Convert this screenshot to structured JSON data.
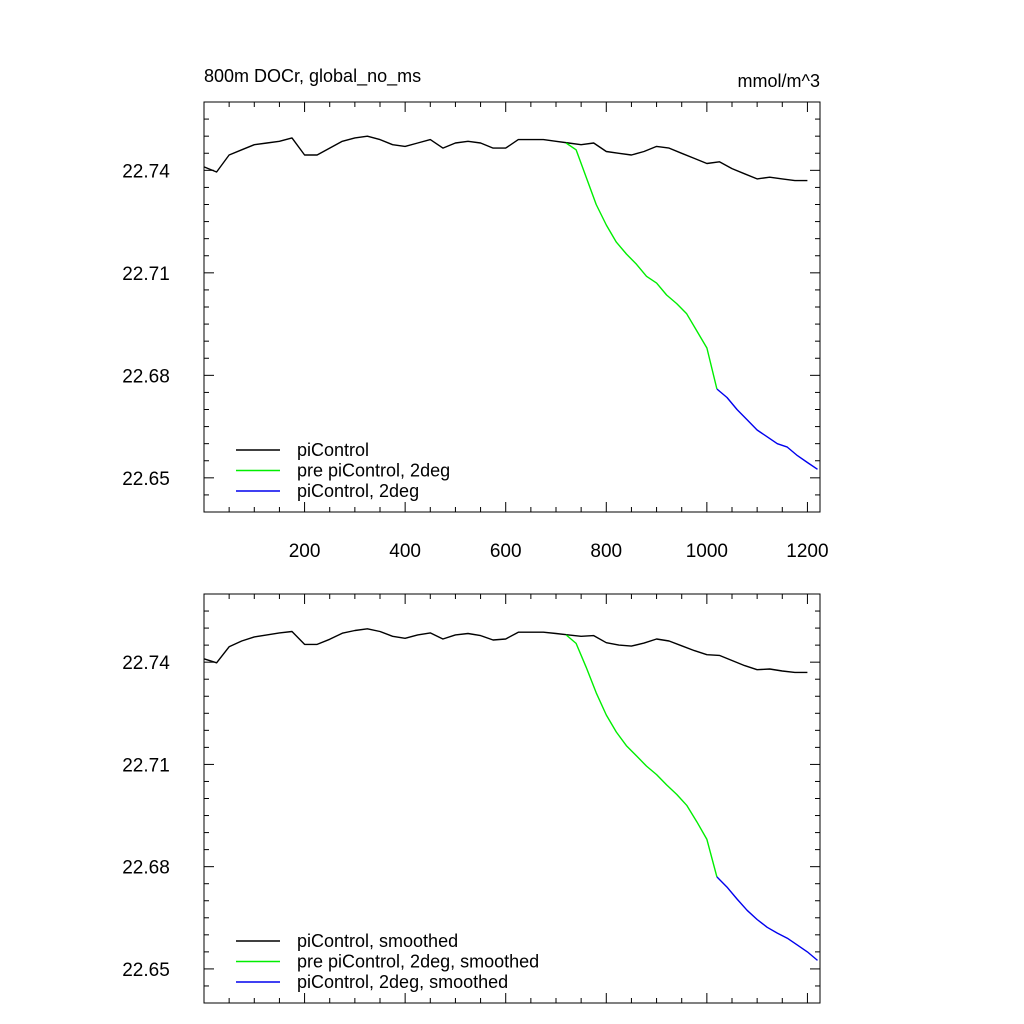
{
  "chart_data": [
    {
      "type": "line",
      "title_left": "800m DOCr, global_no_ms",
      "title_right": "mmol/m^3",
      "xlim": [
        0,
        1225
      ],
      "ylim": [
        22.64,
        22.76
      ],
      "xticks": [
        200,
        400,
        600,
        800,
        1000,
        1200
      ],
      "xtick_labels": [
        "200",
        "400",
        "600",
        "800",
        "1000",
        "1200"
      ],
      "show_xtick_labels": true,
      "yticks": [
        22.65,
        22.68,
        22.71,
        22.74
      ],
      "ytick_labels": [
        "22.65",
        "22.68",
        "22.71",
        "22.74"
      ],
      "legend_position": "bottom-left",
      "series": [
        {
          "name": "piControl",
          "color": "#000000",
          "x": [
            0,
            25,
            50,
            75,
            100,
            125,
            150,
            175,
            200,
            225,
            250,
            275,
            300,
            325,
            350,
            375,
            400,
            425,
            450,
            475,
            500,
            525,
            550,
            575,
            600,
            625,
            650,
            675,
            700,
            725,
            750,
            775,
            800,
            825,
            850,
            875,
            900,
            925,
            950,
            975,
            1000,
            1025,
            1050,
            1075,
            1100,
            1125,
            1150,
            1175,
            1200
          ],
          "y": [
            22.741,
            22.7395,
            22.7445,
            22.746,
            22.7475,
            22.748,
            22.7485,
            22.7495,
            22.7445,
            22.7445,
            22.7465,
            22.7485,
            22.7495,
            22.75,
            22.749,
            22.7475,
            22.747,
            22.748,
            22.749,
            22.7465,
            22.748,
            22.7485,
            22.748,
            22.7465,
            22.7465,
            22.749,
            22.749,
            22.749,
            22.7485,
            22.748,
            22.7475,
            22.748,
            22.7455,
            22.745,
            22.7445,
            22.7455,
            22.747,
            22.7465,
            22.745,
            22.7435,
            22.742,
            22.7425,
            22.7405,
            22.739,
            22.7375,
            22.738,
            22.7375,
            22.737,
            22.737
          ]
        },
        {
          "name": "pre piControl, 2deg",
          "color": "#00ee00",
          "x": [
            720,
            740,
            760,
            780,
            800,
            820,
            840,
            860,
            880,
            900,
            920,
            940,
            960,
            980,
            1000,
            1020
          ],
          "y": [
            22.748,
            22.746,
            22.738,
            22.73,
            22.724,
            22.719,
            22.7155,
            22.7125,
            22.709,
            22.707,
            22.7035,
            22.701,
            22.698,
            22.693,
            22.688,
            22.676
          ]
        },
        {
          "name": "piControl, 2deg",
          "color": "#0000ee",
          "x": [
            1020,
            1040,
            1060,
            1080,
            1100,
            1120,
            1140,
            1160,
            1180,
            1200,
            1220
          ],
          "y": [
            22.676,
            22.6735,
            22.67,
            22.667,
            22.664,
            22.662,
            22.66,
            22.659,
            22.6565,
            22.6545,
            22.6525
          ]
        }
      ]
    },
    {
      "type": "line",
      "title_left": "",
      "title_right": "",
      "xlim": [
        0,
        1225
      ],
      "ylim": [
        22.64,
        22.76
      ],
      "xticks": [
        200,
        400,
        600,
        800,
        1000,
        1200
      ],
      "xtick_labels": [],
      "show_xtick_labels": false,
      "yticks": [
        22.65,
        22.68,
        22.71,
        22.74
      ],
      "ytick_labels": [
        "22.65",
        "22.68",
        "22.71",
        "22.74"
      ],
      "legend_position": "bottom-left",
      "series": [
        {
          "name": "piControl, smoothed",
          "color": "#000000",
          "x": [
            0,
            25,
            50,
            75,
            100,
            125,
            150,
            175,
            200,
            225,
            250,
            275,
            300,
            325,
            350,
            375,
            400,
            425,
            450,
            475,
            500,
            525,
            550,
            575,
            600,
            625,
            650,
            675,
            700,
            725,
            750,
            775,
            800,
            825,
            850,
            875,
            900,
            925,
            950,
            975,
            1000,
            1025,
            1050,
            1075,
            1100,
            1125,
            1150,
            1175,
            1200
          ],
          "y": [
            22.741,
            22.7398,
            22.7445,
            22.7462,
            22.7474,
            22.748,
            22.7486,
            22.749,
            22.7452,
            22.7452,
            22.7467,
            22.7485,
            22.7493,
            22.7498,
            22.749,
            22.7476,
            22.747,
            22.748,
            22.7486,
            22.7468,
            22.748,
            22.7484,
            22.7478,
            22.7465,
            22.7468,
            22.7488,
            22.7488,
            22.7488,
            22.7484,
            22.748,
            22.7476,
            22.7478,
            22.7457,
            22.745,
            22.7447,
            22.7456,
            22.7468,
            22.7462,
            22.7448,
            22.7434,
            22.7422,
            22.742,
            22.7405,
            22.739,
            22.7378,
            22.738,
            22.7374,
            22.737,
            22.737
          ]
        },
        {
          "name": "pre piControl, 2deg, smoothed",
          "color": "#00ee00",
          "x": [
            720,
            740,
            760,
            780,
            800,
            820,
            840,
            860,
            880,
            900,
            920,
            940,
            960,
            980,
            1000,
            1020
          ],
          "y": [
            22.748,
            22.7455,
            22.7385,
            22.731,
            22.7245,
            22.7195,
            22.7155,
            22.7125,
            22.7095,
            22.707,
            22.704,
            22.7012,
            22.698,
            22.6932,
            22.688,
            22.677
          ]
        },
        {
          "name": "piControl, 2deg, smoothed",
          "color": "#0000ee",
          "x": [
            1020,
            1040,
            1060,
            1080,
            1100,
            1120,
            1140,
            1160,
            1180,
            1200,
            1220
          ],
          "y": [
            22.677,
            22.674,
            22.6705,
            22.6672,
            22.6645,
            22.6622,
            22.6605,
            22.659,
            22.657,
            22.655,
            22.6525
          ]
        }
      ]
    }
  ]
}
